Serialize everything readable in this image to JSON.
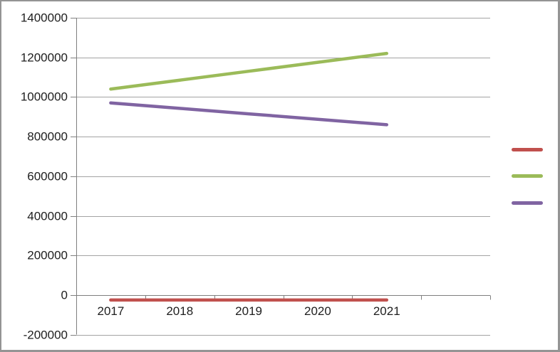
{
  "chart": {
    "background": "#FFFFFF",
    "frame_border_color": "#949494",
    "axis_color": "#7F7F7F",
    "gridline_color": "#A3A3A3",
    "text_color": "#1E1E1E"
  },
  "chart_data": {
    "type": "line",
    "title": "",
    "xlabel": "",
    "ylabel": "",
    "categories": [
      "2017",
      "2018",
      "2019",
      "2020",
      "2021"
    ],
    "series": [
      {
        "name": "",
        "color": "#C0504D",
        "values": [
          -25000,
          -25000,
          -25000,
          -25000,
          -25000
        ]
      },
      {
        "name": "",
        "color": "#9BBB59",
        "values": [
          1040000,
          1085000,
          1130000,
          1175000,
          1220000
        ]
      },
      {
        "name": "",
        "color": "#8064A2",
        "values": [
          970000,
          942500,
          915000,
          887500,
          860000
        ]
      }
    ],
    "ylim": [
      -200000,
      1400000
    ],
    "ytick_interval": 200000,
    "yticks": [
      "1400000",
      "1200000",
      "1000000",
      "800000",
      "600000",
      "400000",
      "200000",
      "0",
      "-200000"
    ],
    "grid": true,
    "vertical_gridlines": false,
    "markers": false,
    "legend_position": "right",
    "legend_labels_visible": false,
    "extra_empty_category_slot": true
  }
}
